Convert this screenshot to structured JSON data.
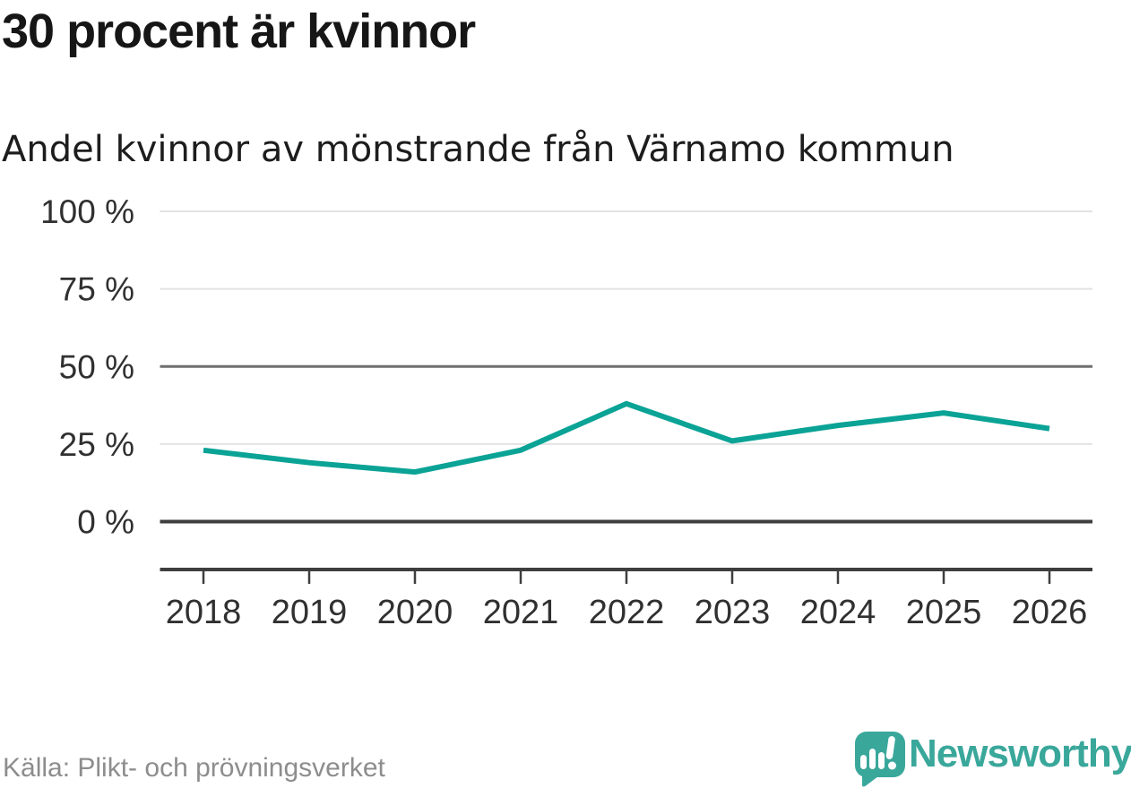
{
  "header": {
    "title": "30 procent är kvinnor",
    "subtitle": "Andel kvinnor av mönstrande från Värnamo kommun"
  },
  "chart_data": {
    "type": "line",
    "title": "30 procent är kvinnor",
    "subtitle": "Andel kvinnor av mönstrande från Värnamo kommun",
    "categories": [
      "2018",
      "2019",
      "2020",
      "2021",
      "2022",
      "2023",
      "2024",
      "2025",
      "2026"
    ],
    "series": [
      {
        "name": "Andel kvinnor av mönstrande",
        "values": [
          23,
          19,
          16,
          23,
          38,
          26,
          31,
          35,
          30
        ]
      }
    ],
    "unit": "%",
    "ylim": [
      0,
      100
    ],
    "y_ticks": [
      {
        "value": 100,
        "label": "100 %",
        "emphasis": "light"
      },
      {
        "value": 75,
        "label": "75 %",
        "emphasis": "light"
      },
      {
        "value": 50,
        "label": "50 %",
        "emphasis": "medium"
      },
      {
        "value": 25,
        "label": "25 %",
        "emphasis": "light"
      },
      {
        "value": 0,
        "label": "0 %",
        "emphasis": "strong"
      }
    ],
    "grid": "horizontal",
    "legend": "none",
    "line_color": "#0aa396",
    "gridline_colors": {
      "light": "#e2e2e2",
      "medium": "#6e6e6e",
      "strong": "#3e3e3e"
    },
    "axis_color": "#3e3e3e",
    "axis_label_color": "#303030"
  },
  "footer": {
    "source": "Källa: Plikt- och prövningsverket",
    "brand": {
      "name": "Newsworthy",
      "color": "#3aa79b"
    }
  }
}
